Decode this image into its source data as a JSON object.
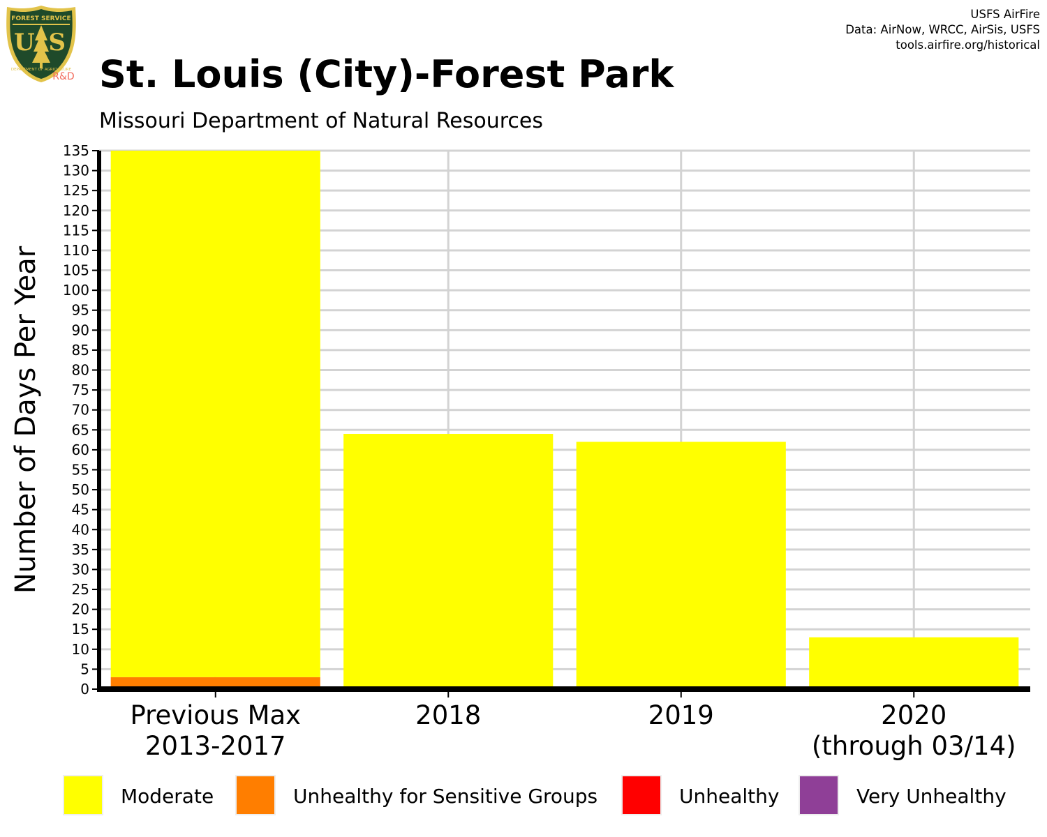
{
  "header": {
    "credit_lines": [
      "USFS AirFire",
      "Data: AirNow, WRCC, AirSis, USFS",
      "tools.airfire.org/historical"
    ],
    "logo": {
      "icon": "us-forest-service-shield-icon",
      "text_top": "FOREST SERVICE",
      "text_bottom": "DEPARTMENT OF AGRICULTURE",
      "letters": "U S",
      "suffix": "R&D",
      "colors": {
        "shield": "#1f4a2a",
        "border": "#e2c34a",
        "suffix": "#f26b5b"
      }
    }
  },
  "chart_data": {
    "type": "bar",
    "stacked": true,
    "title": "St. Louis (City)-Forest Park",
    "subtitle": "Missouri Department of Natural Resources",
    "ylabel": "Number of Days Per Year",
    "xlabel": "",
    "categories": [
      [
        "Previous Max",
        "2013-2017"
      ],
      [
        "2018"
      ],
      [
        "2019"
      ],
      [
        "2020",
        "(through 03/14)"
      ]
    ],
    "ylim": [
      0,
      135
    ],
    "ytick_step": 5,
    "grid": true,
    "legend_position": "bottom",
    "series": [
      {
        "name": "Moderate",
        "color": "#ffff00",
        "values": [
          132,
          64,
          62,
          13
        ]
      },
      {
        "name": "Unhealthy for Sensitive Groups",
        "color": "#ff7e00",
        "values": [
          3,
          0,
          0,
          0
        ]
      },
      {
        "name": "Unhealthy",
        "color": "#ff0000",
        "values": [
          0,
          0,
          0,
          0
        ]
      },
      {
        "name": "Very Unhealthy",
        "color": "#8f3f97",
        "values": [
          0,
          0,
          0,
          0
        ]
      }
    ]
  }
}
